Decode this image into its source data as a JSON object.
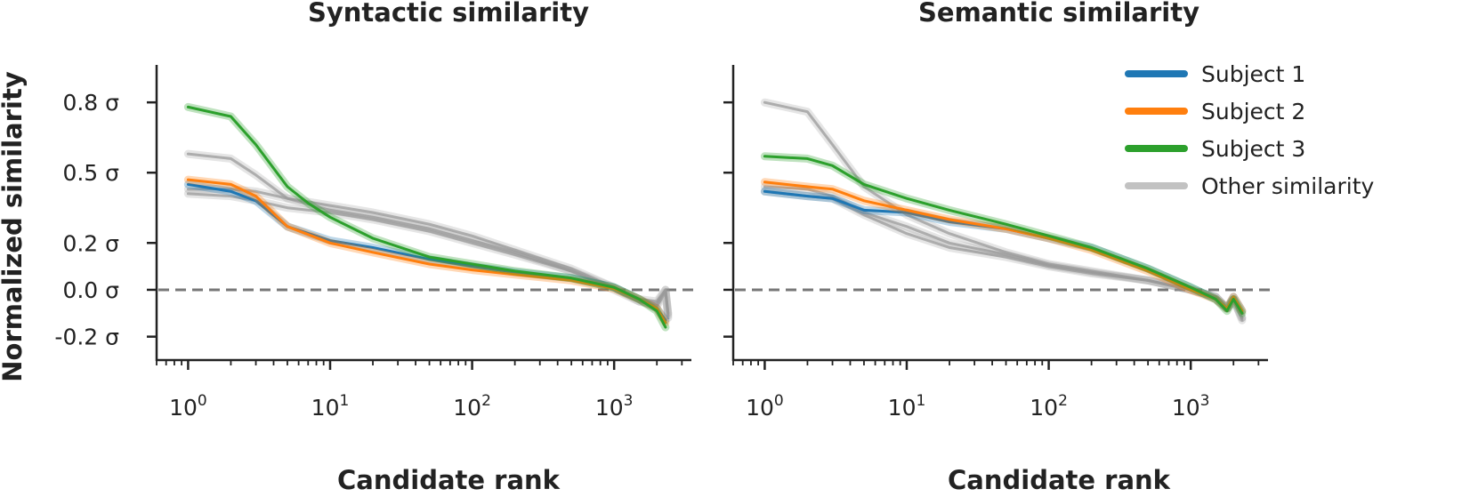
{
  "chart_data": [
    {
      "type": "line",
      "title": "Syntactic similarity",
      "xlabel": "Candidate rank",
      "ylabel": "Normalized similarity",
      "xscale": "log",
      "xlim": [
        0.6,
        3500
      ],
      "ylim": [
        -0.3,
        0.96
      ],
      "xticks": [
        {
          "value": 1,
          "base": "10",
          "exp": "0"
        },
        {
          "value": 10,
          "base": "10",
          "exp": "1"
        },
        {
          "value": 100,
          "base": "10",
          "exp": "2"
        },
        {
          "value": 1000,
          "base": "10",
          "exp": "3"
        }
      ],
      "yticks": [
        {
          "value": -0.2,
          "label": "-0.2 σ"
        },
        {
          "value": 0.0,
          "label": "0.0 σ"
        },
        {
          "value": 0.2,
          "label": "0.2 σ"
        },
        {
          "value": 0.5,
          "label": "0.5 σ"
        },
        {
          "value": 0.8,
          "label": "0.8 σ"
        }
      ],
      "reference_line": {
        "y": 0,
        "style": "dashed"
      },
      "series": [
        {
          "name": "Other similarity",
          "color": "#999999",
          "points": [
            [
              1,
              0.58
            ],
            [
              2,
              0.56
            ],
            [
              3,
              0.49
            ],
            [
              5,
              0.39
            ],
            [
              10,
              0.36
            ],
            [
              20,
              0.33
            ],
            [
              50,
              0.28
            ],
            [
              100,
              0.23
            ],
            [
              200,
              0.17
            ],
            [
              500,
              0.09
            ],
            [
              1000,
              0.01
            ],
            [
              1500,
              -0.04
            ],
            [
              2000,
              -0.05
            ],
            [
              2300,
              0.0
            ],
            [
              2400,
              -0.1
            ]
          ]
        },
        {
          "name": "Other similarity",
          "color": "#999999",
          "points": [
            [
              1,
              0.43
            ],
            [
              2,
              0.43
            ],
            [
              3,
              0.42
            ],
            [
              5,
              0.39
            ],
            [
              10,
              0.34
            ],
            [
              20,
              0.31
            ],
            [
              50,
              0.26
            ],
            [
              100,
              0.21
            ],
            [
              200,
              0.16
            ],
            [
              500,
              0.08
            ],
            [
              1000,
              0.01
            ],
            [
              1500,
              -0.05
            ],
            [
              2000,
              -0.06
            ],
            [
              2300,
              0.0
            ],
            [
              2400,
              -0.11
            ]
          ]
        },
        {
          "name": "Other similarity",
          "color": "#999999",
          "points": [
            [
              1,
              0.41
            ],
            [
              2,
              0.4
            ],
            [
              3,
              0.38
            ],
            [
              5,
              0.35
            ],
            [
              10,
              0.33
            ],
            [
              20,
              0.3
            ],
            [
              50,
              0.25
            ],
            [
              100,
              0.2
            ],
            [
              200,
              0.15
            ],
            [
              500,
              0.08
            ],
            [
              1000,
              0.0
            ],
            [
              1500,
              -0.05
            ],
            [
              2000,
              -0.07
            ],
            [
              2300,
              -0.01
            ],
            [
              2400,
              -0.12
            ]
          ]
        },
        {
          "name": "Subject 1",
          "color": "#1f77b4",
          "points": [
            [
              1,
              0.45
            ],
            [
              2,
              0.42
            ],
            [
              3,
              0.38
            ],
            [
              5,
              0.27
            ],
            [
              10,
              0.21
            ],
            [
              20,
              0.18
            ],
            [
              50,
              0.13
            ],
            [
              100,
              0.1
            ],
            [
              200,
              0.075
            ],
            [
              500,
              0.05
            ],
            [
              1000,
              0.01
            ],
            [
              1500,
              -0.04
            ],
            [
              2000,
              -0.08
            ],
            [
              2300,
              -0.13
            ]
          ]
        },
        {
          "name": "Subject 2",
          "color": "#ff7f0e",
          "points": [
            [
              1,
              0.47
            ],
            [
              2,
              0.45
            ],
            [
              3,
              0.4
            ],
            [
              5,
              0.27
            ],
            [
              10,
              0.2
            ],
            [
              20,
              0.16
            ],
            [
              50,
              0.11
            ],
            [
              100,
              0.085
            ],
            [
              200,
              0.065
            ],
            [
              500,
              0.04
            ],
            [
              1000,
              0.005
            ],
            [
              1500,
              -0.04
            ],
            [
              2000,
              -0.08
            ],
            [
              2300,
              -0.14
            ]
          ]
        },
        {
          "name": "Subject 3",
          "color": "#2ca02c",
          "points": [
            [
              1,
              0.78
            ],
            [
              2,
              0.74
            ],
            [
              3,
              0.62
            ],
            [
              5,
              0.44
            ],
            [
              7,
              0.37
            ],
            [
              10,
              0.31
            ],
            [
              20,
              0.22
            ],
            [
              50,
              0.14
            ],
            [
              100,
              0.11
            ],
            [
              200,
              0.08
            ],
            [
              500,
              0.05
            ],
            [
              1000,
              0.01
            ],
            [
              1500,
              -0.04
            ],
            [
              2000,
              -0.09
            ],
            [
              2300,
              -0.16
            ]
          ]
        }
      ]
    },
    {
      "type": "line",
      "title": "Semantic similarity",
      "xlabel": "Candidate rank",
      "xscale": "log",
      "xlim": [
        0.6,
        3500
      ],
      "ylim": [
        -0.3,
        0.96
      ],
      "xticks": [
        {
          "value": 1,
          "base": "10",
          "exp": "0"
        },
        {
          "value": 10,
          "base": "10",
          "exp": "1"
        },
        {
          "value": 100,
          "base": "10",
          "exp": "2"
        },
        {
          "value": 1000,
          "base": "10",
          "exp": "3"
        }
      ],
      "yticks": [
        {
          "value": -0.2,
          "label": ""
        },
        {
          "value": 0.0,
          "label": ""
        },
        {
          "value": 0.2,
          "label": ""
        },
        {
          "value": 0.5,
          "label": ""
        },
        {
          "value": 0.8,
          "label": ""
        }
      ],
      "reference_line": {
        "y": 0,
        "style": "dashed"
      },
      "legend": {
        "position": "top-right",
        "entries": [
          "Subject 1",
          "Subject 2",
          "Subject 3",
          "Other similarity"
        ]
      },
      "series": [
        {
          "name": "Other similarity",
          "color": "#999999",
          "points": [
            [
              1,
              0.8
            ],
            [
              2,
              0.76
            ],
            [
              3,
              0.62
            ],
            [
              5,
              0.44
            ],
            [
              10,
              0.32
            ],
            [
              20,
              0.24
            ],
            [
              50,
              0.16
            ],
            [
              100,
              0.11
            ],
            [
              200,
              0.08
            ],
            [
              500,
              0.04
            ],
            [
              1000,
              0.0
            ],
            [
              1500,
              -0.03
            ],
            [
              1800,
              -0.08
            ],
            [
              2000,
              -0.04
            ],
            [
              2300,
              -0.12
            ]
          ]
        },
        {
          "name": "Other similarity",
          "color": "#999999",
          "points": [
            [
              1,
              0.42
            ],
            [
              2,
              0.4
            ],
            [
              3,
              0.39
            ],
            [
              5,
              0.32
            ],
            [
              10,
              0.24
            ],
            [
              20,
              0.18
            ],
            [
              50,
              0.14
            ],
            [
              100,
              0.1
            ],
            [
              200,
              0.07
            ],
            [
              500,
              0.04
            ],
            [
              1000,
              0.0
            ],
            [
              1500,
              -0.03
            ],
            [
              1800,
              -0.08
            ],
            [
              2000,
              -0.04
            ],
            [
              2300,
              -0.13
            ]
          ]
        },
        {
          "name": "Other similarity",
          "color": "#999999",
          "points": [
            [
              1,
              0.44
            ],
            [
              2,
              0.43
            ],
            [
              3,
              0.4
            ],
            [
              5,
              0.33
            ],
            [
              10,
              0.27
            ],
            [
              20,
              0.2
            ],
            [
              50,
              0.15
            ],
            [
              100,
              0.105
            ],
            [
              200,
              0.075
            ],
            [
              500,
              0.04
            ],
            [
              1000,
              0.0
            ],
            [
              1500,
              -0.03
            ],
            [
              1800,
              -0.08
            ],
            [
              2000,
              -0.04
            ],
            [
              2300,
              -0.12
            ]
          ]
        },
        {
          "name": "Subject 1",
          "color": "#1f77b4",
          "points": [
            [
              1,
              0.42
            ],
            [
              2,
              0.4
            ],
            [
              3,
              0.39
            ],
            [
              5,
              0.34
            ],
            [
              10,
              0.33
            ],
            [
              20,
              0.29
            ],
            [
              50,
              0.26
            ],
            [
              100,
              0.22
            ],
            [
              200,
              0.18
            ],
            [
              500,
              0.09
            ],
            [
              1000,
              0.01
            ],
            [
              1500,
              -0.04
            ],
            [
              1800,
              -0.08
            ],
            [
              2000,
              -0.03
            ],
            [
              2300,
              -0.09
            ]
          ]
        },
        {
          "name": "Subject 2",
          "color": "#ff7f0e",
          "points": [
            [
              1,
              0.46
            ],
            [
              2,
              0.44
            ],
            [
              3,
              0.43
            ],
            [
              5,
              0.38
            ],
            [
              10,
              0.34
            ],
            [
              20,
              0.3
            ],
            [
              50,
              0.26
            ],
            [
              100,
              0.22
            ],
            [
              200,
              0.17
            ],
            [
              500,
              0.08
            ],
            [
              1000,
              0.0
            ],
            [
              1500,
              -0.04
            ],
            [
              1800,
              -0.08
            ],
            [
              2000,
              -0.03
            ],
            [
              2300,
              -0.09
            ]
          ]
        },
        {
          "name": "Subject 3",
          "color": "#2ca02c",
          "points": [
            [
              1,
              0.57
            ],
            [
              2,
              0.56
            ],
            [
              3,
              0.53
            ],
            [
              5,
              0.45
            ],
            [
              10,
              0.39
            ],
            [
              20,
              0.34
            ],
            [
              50,
              0.28
            ],
            [
              100,
              0.23
            ],
            [
              200,
              0.18
            ],
            [
              500,
              0.09
            ],
            [
              1000,
              0.01
            ],
            [
              1500,
              -0.04
            ],
            [
              1800,
              -0.09
            ],
            [
              2000,
              -0.04
            ],
            [
              2300,
              -0.1
            ]
          ]
        }
      ]
    }
  ]
}
